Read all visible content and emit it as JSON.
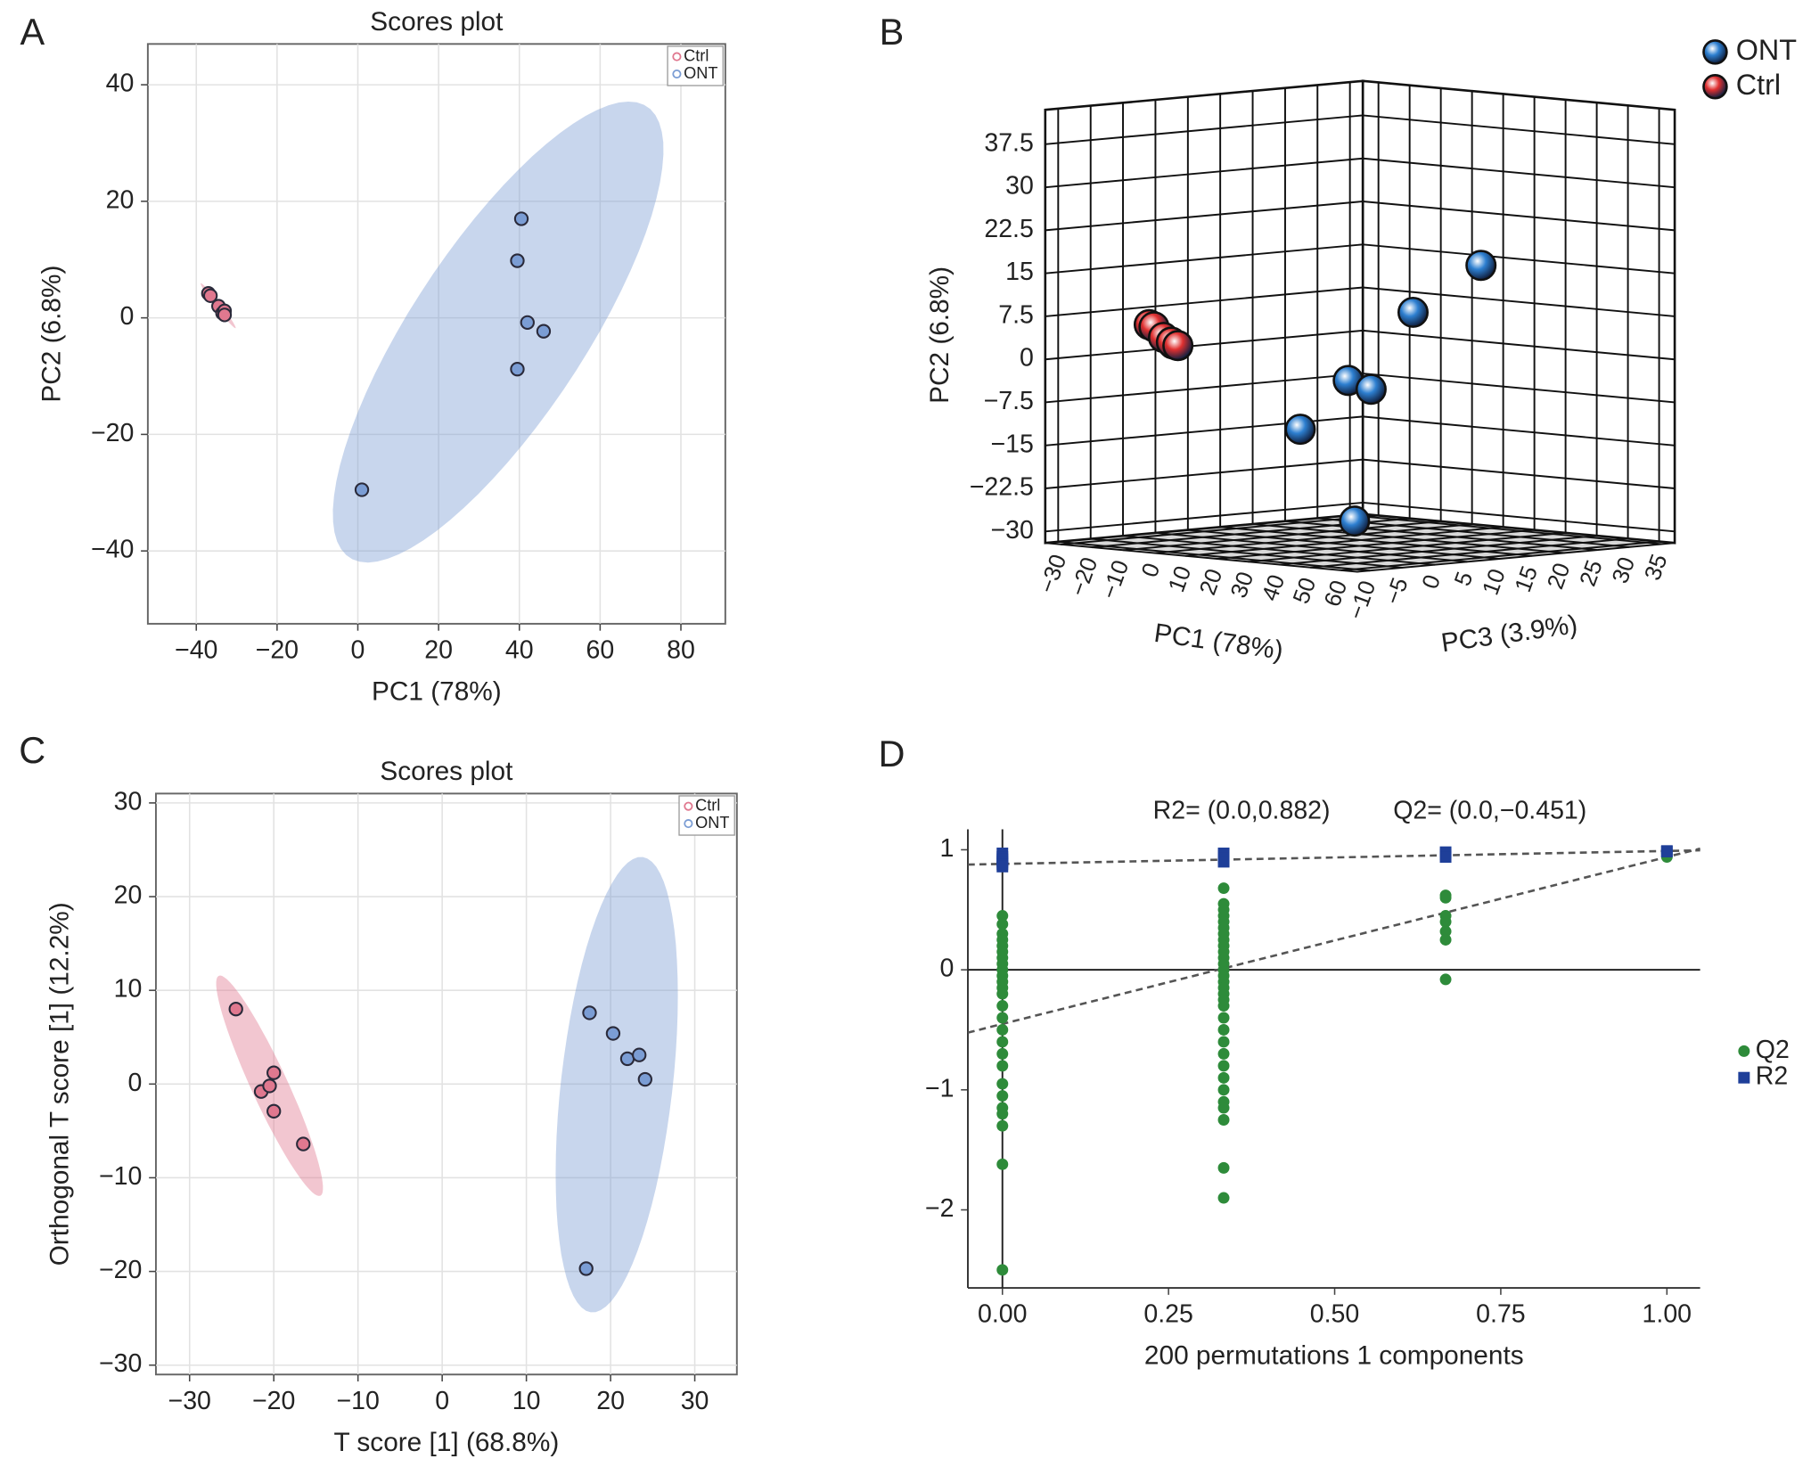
{
  "chart_data": [
    {
      "label": "A",
      "type": "scatter",
      "title": "Scores plot",
      "xlabel": "PC1 (78%)",
      "ylabel": "PC2 (6.8%)",
      "xlim": [
        -52,
        91
      ],
      "ylim": [
        -52.5,
        47
      ],
      "xticks": [
        {
          "value": -40,
          "label": "−40"
        },
        {
          "value": -20,
          "label": "−20"
        },
        0,
        20,
        40,
        60,
        80
      ],
      "yticks": [
        {
          "value": -40,
          "label": "−40"
        },
        {
          "value": -20,
          "label": "−20"
        },
        0,
        20,
        40
      ],
      "grid": true,
      "frame": "box",
      "ellipse": true,
      "legend": "upper right",
      "series": [
        {
          "name": "Ctrl",
          "color": "#e0788f",
          "x": [
            -37,
            -36.5,
            -34.5,
            -33.5,
            -33,
            -33
          ],
          "values": [
            4.2,
            3.8,
            2,
            0.8,
            1.2,
            0.5
          ]
        },
        {
          "name": "ONT",
          "color": "#7b9dd4",
          "x": [
            40.5,
            39.5,
            42,
            46,
            39.5,
            1
          ],
          "values": [
            17,
            9.8,
            -0.8,
            -2.3,
            -8.8,
            -29.5
          ]
        }
      ]
    },
    {
      "label": "B",
      "type": "scatter3d",
      "xlabel": "PC1 (78%)",
      "ylabel": "PC2 (6.8%)",
      "zlabel": "PC3 (3.9%)",
      "xlim": [
        -35,
        65
      ],
      "ylim": [
        -32,
        43.5
      ],
      "zlim": [
        -12,
        37
      ],
      "xticks": [
        {
          "value": -30,
          "label": "−30"
        },
        {
          "value": -20,
          "label": "−20"
        },
        {
          "value": -10,
          "label": "−10"
        },
        0,
        10,
        20,
        30,
        40,
        50,
        60
      ],
      "yticks": [
        {
          "value": -30,
          "label": "−30"
        },
        {
          "value": -22.5,
          "label": "−22.5"
        },
        {
          "value": -15,
          "label": "−15"
        },
        {
          "value": -7.5,
          "label": "−7.5"
        },
        0,
        7.5,
        15,
        22.5,
        30,
        37.5
      ],
      "zticks": [
        {
          "value": -10,
          "label": "−10"
        },
        {
          "value": -5,
          "label": "−5"
        },
        0,
        5,
        10,
        15,
        20,
        25,
        30,
        35
      ],
      "legend": "upper right",
      "series": [
        {
          "name": "ONT",
          "color": "#2d7fd0",
          "x": [
            40.5,
            39.5,
            42,
            46,
            39.5,
            1
          ],
          "values": [
            17,
            9.8,
            -0.8,
            -2.3,
            -8.8,
            -29.5
          ],
          "z": [
            18.9,
            8.9,
            -2.3,
            -0.7,
            -8.5,
            18.4
          ]
        },
        {
          "name": "Ctrl",
          "color": "#e03030",
          "x": [
            -37,
            -36.5,
            -34.5,
            -33.5,
            -33,
            -33
          ],
          "values": [
            4.2,
            3.8,
            2,
            0.8,
            1.2,
            0.5
          ],
          "z": [
            5,
            5.5,
            6,
            7,
            6.5,
            7.5
          ]
        }
      ]
    },
    {
      "label": "C",
      "type": "scatter",
      "title": "Scores plot",
      "xlabel": "T score [1] (68.8%)",
      "ylabel": "Orthogonal T score [1] (12.2%)",
      "xlim": [
        -34,
        35
      ],
      "ylim": [
        -31,
        31
      ],
      "xticks": [
        {
          "value": -30,
          "label": "−30"
        },
        {
          "value": -20,
          "label": "−20"
        },
        {
          "value": -10,
          "label": "−10"
        },
        0,
        10,
        20,
        30
      ],
      "yticks": [
        {
          "value": -30,
          "label": "−30"
        },
        {
          "value": -20,
          "label": "−20"
        },
        {
          "value": -10,
          "label": "−10"
        },
        0,
        10,
        20,
        30
      ],
      "grid": true,
      "frame": "box",
      "ellipse": true,
      "legend": "upper right",
      "series": [
        {
          "name": "Ctrl",
          "color": "#e0788f",
          "x": [
            -24.5,
            -21.5,
            -20.5,
            -20,
            -20,
            -16.5
          ],
          "values": [
            8,
            -0.8,
            -0.2,
            1.2,
            -2.9,
            -6.4
          ]
        },
        {
          "name": "ONT",
          "color": "#7b9dd4",
          "x": [
            17.5,
            20.3,
            22,
            23.4,
            24.1,
            17.1
          ],
          "values": [
            7.6,
            5.4,
            2.7,
            3.1,
            0.5,
            -19.7
          ]
        }
      ]
    },
    {
      "label": "D",
      "type": "scatter",
      "xlabel": "200 permutations 1 components",
      "annotations": [
        "R2= (0.0,0.882)",
        "Q2= (0.0,−0.451)"
      ],
      "xlim": [
        -0.052,
        1.05
      ],
      "ylim": [
        -2.65,
        1.17
      ],
      "xticks": [
        {
          "value": 0,
          "label": "0.00"
        },
        {
          "value": 0.25,
          "label": "0.25"
        },
        {
          "value": 0.5,
          "label": "0.50"
        },
        {
          "value": 0.75,
          "label": "0.75"
        },
        {
          "value": 1,
          "label": "1.00"
        }
      ],
      "yticks": [
        {
          "value": -2,
          "label": "−2"
        },
        {
          "value": -1,
          "label": "−1"
        },
        0,
        1
      ],
      "grid": false,
      "frame": "open",
      "zero_lines": true,
      "ellipse": false,
      "legend": "right",
      "series": [
        {
          "name": "Q2",
          "color": "#2e8b3a",
          "marker": "circle",
          "intercept": -0.451,
          "x": [
            0,
            0,
            0,
            0,
            0,
            0,
            0,
            0,
            0,
            0,
            0,
            0,
            0,
            0,
            0,
            0,
            0,
            0,
            0,
            0,
            0,
            0,
            0,
            0,
            0,
            0,
            0.333,
            0.333,
            0.333,
            0.333,
            0.333,
            0.333,
            0.333,
            0.333,
            0.333,
            0.333,
            0.333,
            0.333,
            0.333,
            0.333,
            0.333,
            0.333,
            0.333,
            0.333,
            0.333,
            0.333,
            0.333,
            0.333,
            0.333,
            0.333,
            0.333,
            0.333,
            0.333,
            0.333,
            0.333,
            0.333,
            0.333,
            0.667,
            0.667,
            0.667,
            0.667,
            0.667,
            0.667,
            0.667,
            1,
            1
          ],
          "values": [
            0.45,
            0.38,
            0.3,
            0.25,
            0.2,
            0.15,
            0.1,
            0.05,
            0,
            -0.05,
            -0.1,
            -0.15,
            -0.2,
            -0.3,
            -0.4,
            -0.5,
            -0.6,
            -0.7,
            -0.8,
            -0.95,
            -1.05,
            -1.15,
            -1.2,
            -1.3,
            -1.62,
            -2.5,
            0.68,
            0.55,
            0.5,
            0.45,
            0.4,
            0.35,
            0.3,
            0.25,
            0.2,
            0.15,
            0.1,
            0.05,
            0,
            -0.05,
            -0.1,
            -0.15,
            -0.2,
            -0.25,
            -0.3,
            -0.4,
            -0.5,
            -0.6,
            -0.7,
            -0.8,
            -0.9,
            -1.0,
            -1.1,
            -1.15,
            -1.25,
            -1.65,
            -1.9,
            0.62,
            0.6,
            0.45,
            0.4,
            0.32,
            0.25,
            -0.08,
            0.97,
            0.94
          ]
        },
        {
          "name": "R2",
          "color": "#1f3f99",
          "marker": "square",
          "intercept": 0.882,
          "x": [
            0,
            0,
            0,
            0,
            0,
            0,
            0.333,
            0.333,
            0.333,
            0.333,
            0.667,
            0.667,
            0.667,
            1,
            1
          ],
          "values": [
            0.97,
            0.94,
            0.92,
            0.9,
            0.88,
            0.86,
            0.97,
            0.95,
            0.93,
            0.9,
            0.98,
            0.96,
            0.94,
            0.985,
            0.99
          ]
        }
      ]
    }
  ]
}
